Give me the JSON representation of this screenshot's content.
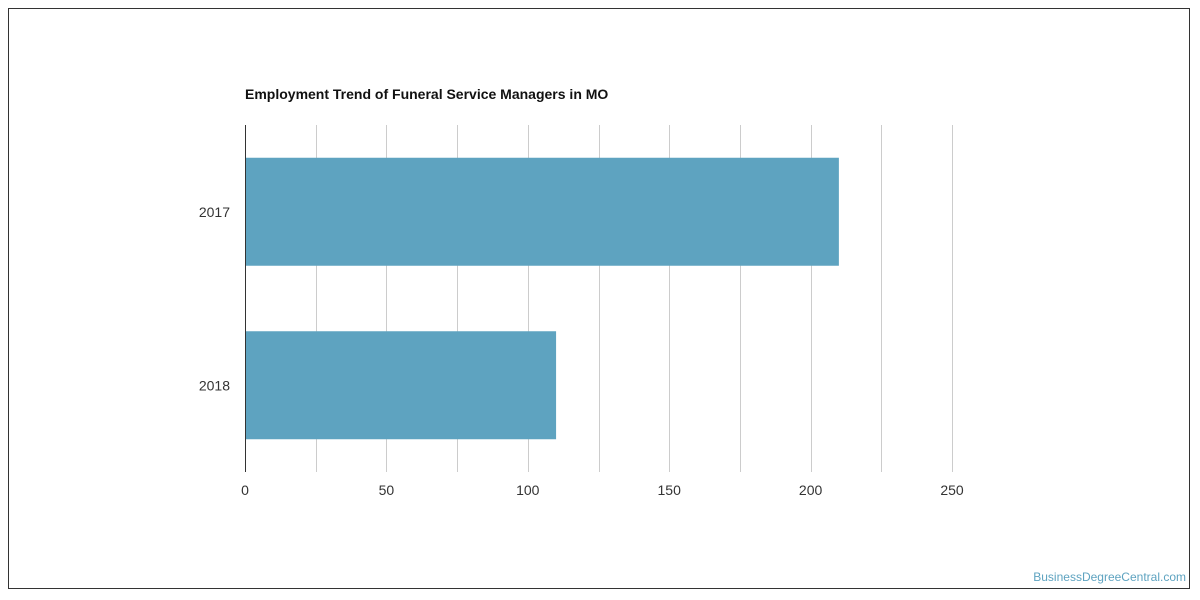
{
  "chart_data": {
    "type": "bar",
    "orientation": "horizontal",
    "title": "Employment Trend of Funeral Service Managers in MO",
    "xlabel": "",
    "ylabel": "",
    "categories": [
      "2017",
      "2018"
    ],
    "values": [
      210,
      110
    ],
    "xlim": [
      0,
      250
    ],
    "xticks": [
      0,
      50,
      100,
      150,
      200,
      250
    ],
    "grid": true,
    "bar_color": "#5ea3c0",
    "grid_color": "#cccccc",
    "axis_color": "#333333"
  },
  "watermark": {
    "text": "BusinessDegreeCentral.com",
    "color": "#5ea3c0"
  }
}
